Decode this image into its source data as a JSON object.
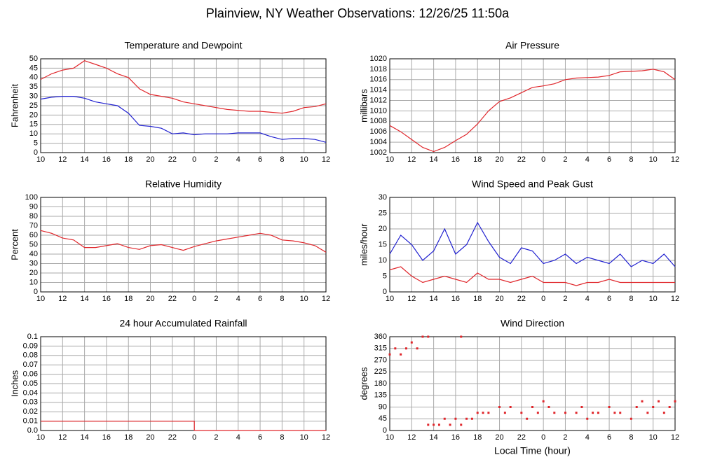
{
  "title": "Plainview, NY Weather Observations: 12/26/25 11:50a",
  "chart_data": [
    {
      "type": "line",
      "title": "Temperature and Dewpoint",
      "ylabel": "Fahrenheit",
      "xlim": [
        10,
        36
      ],
      "xticks": [
        10,
        12,
        14,
        16,
        18,
        20,
        22,
        {
          "value": 24,
          "label": "0"
        },
        {
          "value": 26,
          "label": "2"
        },
        {
          "value": 28,
          "label": "4"
        },
        {
          "value": 30,
          "label": "6"
        },
        {
          "value": 32,
          "label": "8"
        },
        {
          "value": 34,
          "label": "10"
        },
        {
          "value": 36,
          "label": "12"
        }
      ],
      "ylim": [
        0,
        50
      ],
      "yticks": [
        0,
        5,
        10,
        15,
        20,
        25,
        30,
        35,
        40,
        45,
        50
      ],
      "grid": true,
      "series": [
        {
          "color": "#e0262b",
          "x": [
            10,
            11,
            12,
            13,
            14,
            15,
            16,
            17,
            18,
            19,
            20,
            21,
            22,
            23,
            24,
            25,
            26,
            27,
            28,
            29,
            30,
            31,
            32,
            33,
            34,
            35,
            36
          ],
          "values": [
            39,
            42,
            44,
            45,
            49,
            47,
            45,
            42,
            40,
            34,
            31,
            30,
            29,
            27,
            26,
            25,
            24,
            23,
            22.5,
            22,
            22,
            21.5,
            21,
            22,
            24,
            24.5,
            26
          ]
        },
        {
          "color": "#2020d0",
          "x": [
            10,
            11,
            12,
            13,
            14,
            15,
            16,
            17,
            18,
            19,
            20,
            21,
            22,
            23,
            24,
            25,
            26,
            27,
            28,
            29,
            30,
            31,
            32,
            33,
            34,
            35,
            36
          ],
          "values": [
            28.5,
            29.5,
            30,
            30,
            29,
            27,
            26,
            25,
            21,
            14.5,
            14,
            13,
            10,
            10.5,
            9.5,
            10,
            10,
            10,
            10.5,
            10.5,
            10.5,
            8.5,
            7,
            7.5,
            7.5,
            7,
            5.5
          ]
        }
      ]
    },
    {
      "type": "line",
      "title": "Air Pressure",
      "ylabel": "millibars",
      "xlim": [
        10,
        36
      ],
      "xticks": [
        10,
        12,
        14,
        16,
        18,
        20,
        22,
        {
          "value": 24,
          "label": "0"
        },
        {
          "value": 26,
          "label": "2"
        },
        {
          "value": 28,
          "label": "4"
        },
        {
          "value": 30,
          "label": "6"
        },
        {
          "value": 32,
          "label": "8"
        },
        {
          "value": 34,
          "label": "10"
        },
        {
          "value": 36,
          "label": "12"
        }
      ],
      "ylim": [
        1002,
        1020
      ],
      "yticks": [
        1002,
        1004,
        1006,
        1008,
        1010,
        1012,
        1014,
        1016,
        1018,
        1020
      ],
      "grid": true,
      "series": [
        {
          "color": "#e0262b",
          "x": [
            10,
            11,
            12,
            13,
            14,
            15,
            16,
            17,
            18,
            19,
            20,
            21,
            22,
            23,
            24,
            25,
            26,
            27,
            28,
            29,
            30,
            31,
            32,
            33,
            34,
            35,
            36
          ],
          "values": [
            1007.2,
            1006,
            1004.5,
            1003,
            1002.2,
            1003,
            1004.3,
            1005.5,
            1007.5,
            1010,
            1011.8,
            1012.5,
            1013.5,
            1014.5,
            1014.8,
            1015.2,
            1016,
            1016.3,
            1016.4,
            1016.5,
            1016.8,
            1017.5,
            1017.6,
            1017.7,
            1018,
            1017.5,
            1016
          ]
        }
      ]
    },
    {
      "type": "line",
      "title": "Relative Humidity",
      "ylabel": "Percent",
      "xlim": [
        10,
        36
      ],
      "xticks": [
        10,
        12,
        14,
        16,
        18,
        20,
        22,
        {
          "value": 24,
          "label": "0"
        },
        {
          "value": 26,
          "label": "2"
        },
        {
          "value": 28,
          "label": "4"
        },
        {
          "value": 30,
          "label": "6"
        },
        {
          "value": 32,
          "label": "8"
        },
        {
          "value": 34,
          "label": "10"
        },
        {
          "value": 36,
          "label": "12"
        }
      ],
      "ylim": [
        0,
        100
      ],
      "yticks": [
        0,
        10,
        20,
        30,
        40,
        50,
        60,
        70,
        80,
        90,
        100
      ],
      "grid": true,
      "series": [
        {
          "color": "#e0262b",
          "x": [
            10,
            11,
            12,
            13,
            14,
            15,
            16,
            17,
            18,
            19,
            20,
            21,
            22,
            23,
            24,
            25,
            26,
            27,
            28,
            29,
            30,
            31,
            32,
            33,
            34,
            35,
            36
          ],
          "values": [
            65,
            62,
            57,
            55,
            47,
            47,
            49,
            51,
            47,
            45,
            49,
            50,
            47,
            44,
            48,
            51,
            54,
            56,
            58,
            60,
            62,
            60,
            55,
            54,
            52,
            49,
            42
          ]
        }
      ]
    },
    {
      "type": "line",
      "title": "Wind Speed and Peak Gust",
      "ylabel": "miles/hour",
      "xlim": [
        10,
        36
      ],
      "xticks": [
        10,
        12,
        14,
        16,
        18,
        20,
        22,
        {
          "value": 24,
          "label": "0"
        },
        {
          "value": 26,
          "label": "2"
        },
        {
          "value": 28,
          "label": "4"
        },
        {
          "value": 30,
          "label": "6"
        },
        {
          "value": 32,
          "label": "8"
        },
        {
          "value": 34,
          "label": "10"
        },
        {
          "value": 36,
          "label": "12"
        }
      ],
      "ylim": [
        0,
        30
      ],
      "yticks": [
        0,
        5,
        10,
        15,
        20,
        25,
        30
      ],
      "grid": true,
      "series": [
        {
          "color": "#2020d0",
          "x": [
            10,
            11,
            12,
            13,
            14,
            15,
            16,
            17,
            18,
            19,
            20,
            21,
            22,
            23,
            24,
            25,
            26,
            27,
            28,
            29,
            30,
            31,
            32,
            33,
            34,
            35,
            36
          ],
          "values": [
            12,
            18,
            15,
            10,
            13,
            20,
            12,
            15,
            22,
            16,
            11,
            9,
            14,
            13,
            9,
            10,
            12,
            9,
            11,
            10,
            9,
            12,
            8,
            10,
            9,
            12,
            8
          ]
        },
        {
          "color": "#e0262b",
          "x": [
            10,
            11,
            12,
            13,
            14,
            15,
            16,
            17,
            18,
            19,
            20,
            21,
            22,
            23,
            24,
            25,
            26,
            27,
            28,
            29,
            30,
            31,
            32,
            33,
            34,
            35,
            36
          ],
          "values": [
            7,
            8,
            5,
            3,
            4,
            5,
            4,
            3,
            6,
            4,
            4,
            3,
            4,
            5,
            3,
            3,
            3,
            2,
            3,
            3,
            4,
            3,
            3,
            3,
            3,
            3,
            3
          ]
        }
      ]
    },
    {
      "type": "line",
      "title": "24 hour Accumulated Rainfall",
      "ylabel": "Inches",
      "xlim": [
        10,
        36
      ],
      "xticks": [
        10,
        12,
        14,
        16,
        18,
        20,
        22,
        {
          "value": 24,
          "label": "0"
        },
        {
          "value": 26,
          "label": "2"
        },
        {
          "value": 28,
          "label": "4"
        },
        {
          "value": 30,
          "label": "6"
        },
        {
          "value": 32,
          "label": "8"
        },
        {
          "value": 34,
          "label": "10"
        },
        {
          "value": 36,
          "label": "12"
        }
      ],
      "ylim": [
        0,
        0.1
      ],
      "yticks": [
        {
          "value": 0,
          "label": "0.0"
        },
        0.01,
        0.02,
        0.03,
        0.04,
        0.05,
        0.06,
        0.07,
        0.08,
        0.09,
        0.1
      ],
      "grid": true,
      "series": [
        {
          "color": "#e0262b",
          "x": [
            10,
            24,
            24,
            36
          ],
          "values": [
            0.01,
            0.01,
            0,
            0
          ]
        }
      ]
    },
    {
      "type": "scatter",
      "title": "Wind Direction",
      "ylabel": "degrees",
      "xlabel": "Local Time (hour)",
      "xlim": [
        10,
        36
      ],
      "xticks": [
        10,
        12,
        14,
        16,
        18,
        20,
        22,
        {
          "value": 24,
          "label": "0"
        },
        {
          "value": 26,
          "label": "2"
        },
        {
          "value": 28,
          "label": "4"
        },
        {
          "value": 30,
          "label": "6"
        },
        {
          "value": 32,
          "label": "8"
        },
        {
          "value": 34,
          "label": "10"
        },
        {
          "value": 36,
          "label": "12"
        }
      ],
      "ylim": [
        0,
        360
      ],
      "yticks": [
        0,
        45,
        90,
        135,
        180,
        225,
        270,
        315,
        360
      ],
      "grid": true,
      "series": [
        {
          "color": "#e0262b",
          "x": [
            10,
            10.5,
            11,
            11.5,
            12,
            12.5,
            13,
            13.5,
            13.5,
            14,
            14.5,
            15,
            15.5,
            16,
            16.5,
            16.5,
            17,
            17.5,
            18,
            18.5,
            19,
            20,
            20.5,
            21,
            22,
            22.5,
            23,
            23.5,
            24,
            24.5,
            25,
            26,
            27,
            27.5,
            28,
            28.5,
            29,
            30,
            30.5,
            31,
            32,
            32.5,
            33,
            33.5,
            34,
            34.5,
            35,
            35.5,
            36
          ],
          "values": [
            292,
            315,
            292,
            315,
            338,
            315,
            360,
            360,
            22,
            22,
            22,
            45,
            22,
            45,
            360,
            22,
            45,
            45,
            68,
            68,
            68,
            90,
            68,
            90,
            68,
            45,
            90,
            68,
            112,
            90,
            68,
            68,
            68,
            90,
            45,
            68,
            68,
            90,
            68,
            68,
            45,
            90,
            112,
            68,
            90,
            112,
            68,
            90,
            112
          ]
        }
      ]
    }
  ]
}
